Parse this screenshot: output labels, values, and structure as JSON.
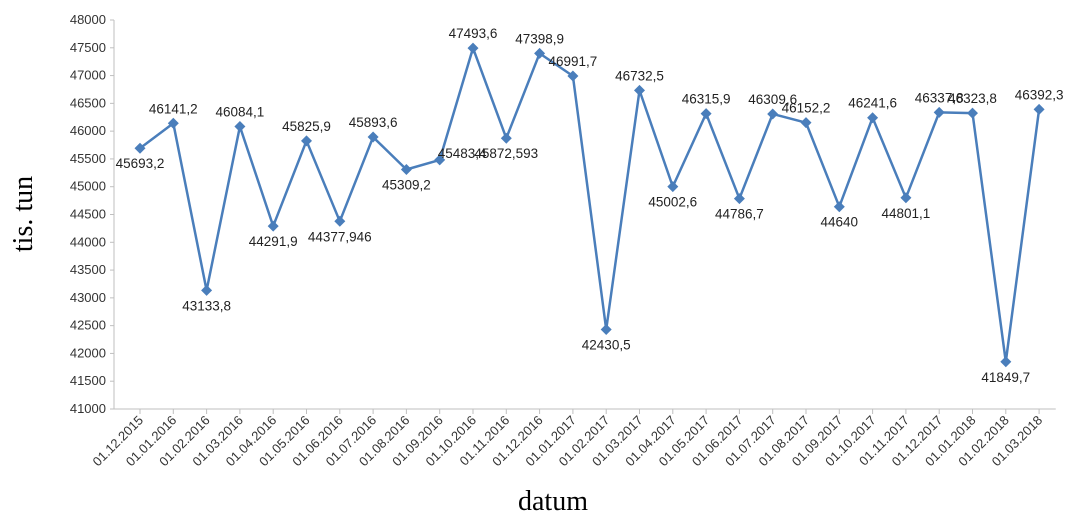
{
  "chart_data": {
    "type": "line",
    "xlabel": "datum",
    "ylabel": "tis. tun",
    "ylim": [
      41000,
      48000
    ],
    "ytick_step": 500,
    "grid": false,
    "legend": "none",
    "line_color": "#4a7ebb",
    "marker": "diamond",
    "categories": [
      "01.12.2015",
      "01.01.2016",
      "01.02.2016",
      "01.03.2016",
      "01.04.2016",
      "01.05.2016",
      "01.06.2016",
      "01.07.2016",
      "01.08.2016",
      "01.09.2016",
      "01.10.2016",
      "01.11.2016",
      "01.12.2016",
      "01.01.2017",
      "01.02.2017",
      "01.03.2017",
      "01.04.2017",
      "01.05.2017",
      "01.06.2017",
      "01.07.2017",
      "01.08.2017",
      "01.09.2017",
      "01.10.2017",
      "01.11.2017",
      "01.12.2017",
      "01.01.2018",
      "01.02.2018",
      "01.03.2018"
    ],
    "values": [
      45693.2,
      46141.2,
      43133.8,
      46084.1,
      44291.9,
      45825.9,
      44377.946,
      45893.6,
      45309.2,
      45483.4,
      47493.6,
      45872.593,
      47398.9,
      46991.7,
      42430.5,
      46732.5,
      45002.6,
      46315.9,
      44786.7,
      46309.6,
      46152.2,
      44640,
      46241.6,
      44801.1,
      46337.8,
      46323.8,
      41849.7,
      46392.3
    ],
    "data_labels": [
      "45693,2",
      "46141,2",
      "43133,8",
      "46084,1",
      "44291,9",
      "45825,9",
      "44377,946",
      "45893,6",
      "45309,2",
      "45483,4",
      "47493,6",
      "45872,593",
      "47398,9",
      "46991,7",
      "42430,5",
      "46732,5",
      "45002,6",
      "46315,9",
      "44786,7",
      "46309,6",
      "46152,2",
      "44640",
      "46241,6",
      "44801,1",
      "46337,8",
      "46323,8",
      "41849,7",
      "46392,3"
    ],
    "label_pos": [
      "below",
      "above",
      "below",
      "above",
      "below",
      "above",
      "below",
      "above",
      "below",
      "right",
      "above",
      "below",
      "above",
      "above",
      "below",
      "above",
      "below",
      "above",
      "below",
      "above",
      "above",
      "below",
      "above",
      "below",
      "above",
      "above",
      "below",
      "above"
    ]
  }
}
